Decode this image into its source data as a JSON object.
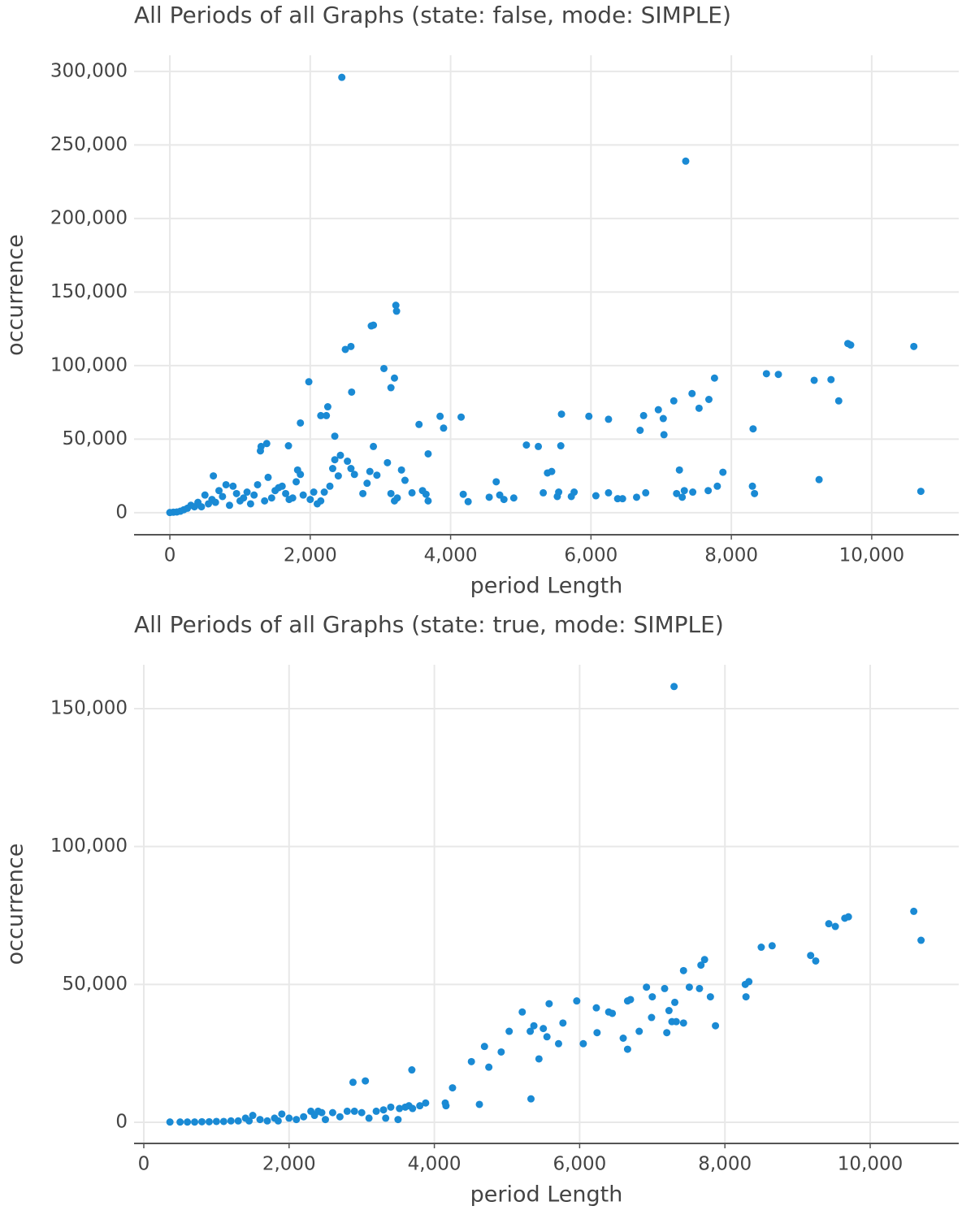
{
  "chart_data": [
    {
      "type": "scatter",
      "title": "All Periods of all Graphs (state: false, mode: SIMPLE)",
      "x_label": "period Length",
      "y_label": "occurrence",
      "color": "#1a8ad4",
      "grid": true,
      "xlim": [
        -510,
        11240
      ],
      "ylim": [
        -15000,
        311000
      ],
      "xticks": [
        0,
        {
          "value": 2000,
          "label": "2,000"
        },
        {
          "value": 4000,
          "label": "4,000"
        },
        {
          "value": 6000,
          "label": "6,000"
        },
        {
          "value": 8000,
          "label": "8,000"
        },
        {
          "value": 10000,
          "label": "10,000"
        }
      ],
      "yticks": [
        0,
        {
          "value": 50000,
          "label": "50,000"
        },
        {
          "value": 100000,
          "label": "100,000"
        },
        {
          "value": 150000,
          "label": "150,000"
        },
        {
          "value": 200000,
          "label": "200,000"
        },
        {
          "value": 250000,
          "label": "250,000"
        },
        {
          "value": 300000,
          "label": "300,000"
        }
      ],
      "x": [
        2450,
        7350,
        3220,
        3230,
        2870,
        2900,
        2580,
        2500,
        3050,
        3200,
        3150,
        1980,
        2590,
        2250,
        2150,
        2230,
        1860,
        2350,
        1300,
        1380,
        1690,
        1290,
        2900,
        3550,
        3850,
        3900,
        4150,
        3680,
        5080,
        5250,
        5570,
        5580,
        5970,
        6250,
        6700,
        6750,
        6960,
        7030,
        7040,
        7180,
        7440,
        7540,
        7680,
        7760,
        8500,
        8670,
        9180,
        9420,
        9530,
        9660,
        9700,
        10600,
        8310,
        7260,
        7880,
        8300,
        8330,
        9250,
        10700,
        7220,
        7330,
        7300,
        7450,
        7670,
        7800,
        6780,
        6650,
        6450,
        6380,
        6250,
        6070,
        5760,
        5720,
        5540,
        5520,
        5440,
        5380,
        5320,
        4650,
        4700,
        4760,
        4900,
        4550,
        4180,
        4250,
        3680,
        3650,
        3600,
        3450,
        3300,
        3350,
        3100,
        3200,
        3240,
        3150,
        2950,
        2850,
        2750,
        2810,
        2630,
        2580,
        2530,
        2430,
        2350,
        2320,
        2400,
        2280,
        2200,
        2100,
        2000,
        1860,
        1820,
        1800,
        1750,
        1600,
        1500,
        1400,
        1350,
        1250,
        1100,
        1050,
        950,
        900,
        800,
        750,
        700,
        620,
        600,
        550,
        500,
        450,
        400,
        300,
        250,
        200,
        150,
        100,
        50,
        0,
        350,
        650,
        850,
        1000,
        1150,
        1200,
        1450,
        1550,
        1650,
        1700,
        1900,
        2050,
        2150
      ],
      "y": [
        296000,
        239000,
        141000,
        137000,
        127000,
        127500,
        113000,
        111000,
        98000,
        91500,
        85000,
        89000,
        82000,
        72000,
        66000,
        66000,
        61000,
        52000,
        45000,
        47000,
        45500,
        42000,
        45000,
        60000,
        65500,
        57500,
        65000,
        40000,
        46000,
        45000,
        45500,
        67000,
        65500,
        63500,
        56000,
        66000,
        70000,
        64000,
        53000,
        76000,
        81000,
        71000,
        77000,
        91500,
        94500,
        94000,
        90000,
        90500,
        76000,
        115000,
        114000,
        113000,
        57000,
        29000,
        27500,
        18000,
        13000,
        22500,
        14500,
        13000,
        15000,
        10500,
        14000,
        15000,
        18000,
        13500,
        10500,
        9500,
        9500,
        13500,
        11500,
        14000,
        11000,
        14000,
        11000,
        28000,
        27000,
        13500,
        21000,
        12000,
        9000,
        10000,
        10500,
        12500,
        7500,
        8000,
        12500,
        15000,
        13500,
        29000,
        22000,
        34000,
        8000,
        10000,
        13000,
        25500,
        28000,
        13000,
        20000,
        26000,
        30000,
        35000,
        39000,
        36000,
        30000,
        25000,
        18000,
        14000,
        6000,
        9000,
        26000,
        29000,
        21000,
        10000,
        18000,
        15000,
        24000,
        8000,
        19000,
        14000,
        10000,
        13000,
        18000,
        19000,
        11000,
        15000,
        25000,
        9000,
        6000,
        12000,
        4000,
        7000,
        5000,
        3000,
        2000,
        1000,
        500,
        300,
        100,
        4000,
        7000,
        5000,
        8000,
        6000,
        12000,
        10000,
        17000,
        13000,
        9000,
        12000,
        14000,
        8000
      ]
    },
    {
      "type": "scatter",
      "title": "All Periods of all Graphs (state: true, mode: SIMPLE)",
      "x_label": "period Length",
      "y_label": "occurrence",
      "color": "#1a8ad4",
      "grid": true,
      "xlim": [
        -134,
        11219
      ],
      "ylim": [
        -7660,
        165900
      ],
      "xticks": [
        0,
        {
          "value": 2000,
          "label": "2,000"
        },
        {
          "value": 4000,
          "label": "4,000"
        },
        {
          "value": 6000,
          "label": "6,000"
        },
        {
          "value": 8000,
          "label": "8,000"
        },
        {
          "value": 10000,
          "label": "10,000"
        }
      ],
      "yticks": [
        0,
        {
          "value": 50000,
          "label": "50,000"
        },
        {
          "value": 100000,
          "label": "100,000"
        },
        {
          "value": 150000,
          "label": "150,000"
        }
      ],
      "x": [
        7300,
        10600,
        10700,
        9700,
        9650,
        9430,
        9520,
        9180,
        9250,
        8650,
        8500,
        8330,
        8280,
        8290,
        7870,
        7800,
        7720,
        7670,
        7650,
        7510,
        7430,
        7430,
        7310,
        7270,
        7330,
        7230,
        7200,
        7170,
        7000,
        6990,
        6920,
        6820,
        6700,
        6660,
        6660,
        6600,
        6450,
        6400,
        6230,
        6240,
        6050,
        5960,
        5770,
        5710,
        5580,
        5550,
        5500,
        5440,
        5370,
        5320,
        5330,
        5210,
        5030,
        4920,
        4750,
        4690,
        4620,
        4510,
        4250,
        4150,
        4160,
        3880,
        3800,
        3690,
        3650,
        3600,
        3700,
        3500,
        3400,
        3300,
        3200,
        3050,
        2880,
        3000,
        3100,
        2900,
        2800,
        2700,
        2600,
        2500,
        2450,
        2350,
        2300,
        2200,
        2100,
        2000,
        1900,
        1850,
        1800,
        1700,
        1600,
        1500,
        1450,
        1400,
        1300,
        1200,
        1100,
        1000,
        900,
        800,
        700,
        600,
        500,
        360,
        2400,
        3330,
        3520
      ],
      "y": [
        158000,
        76500,
        66000,
        74500,
        74000,
        72000,
        71000,
        60500,
        58500,
        64000,
        63500,
        51000,
        50000,
        45500,
        35000,
        45500,
        59000,
        57000,
        48500,
        49000,
        55000,
        36000,
        43500,
        36500,
        36500,
        40500,
        32500,
        48500,
        45500,
        38000,
        49000,
        33000,
        44500,
        44000,
        26500,
        30500,
        39500,
        40000,
        41500,
        32500,
        28500,
        44000,
        36000,
        28500,
        43000,
        31000,
        34000,
        23000,
        35000,
        33000,
        8500,
        40000,
        33000,
        25500,
        20000,
        27500,
        6500,
        22000,
        12500,
        7000,
        6000,
        7000,
        6000,
        19000,
        6000,
        5500,
        5000,
        1000,
        5500,
        4500,
        4000,
        15000,
        14500,
        3500,
        1500,
        4000,
        4000,
        2000,
        3500,
        1000,
        3500,
        2500,
        4000,
        2000,
        1000,
        1500,
        3000,
        500,
        1500,
        500,
        1000,
        2500,
        500,
        1500,
        500,
        500,
        300,
        300,
        200,
        200,
        100,
        100,
        100,
        100,
        4000,
        1500,
        5000
      ]
    }
  ]
}
